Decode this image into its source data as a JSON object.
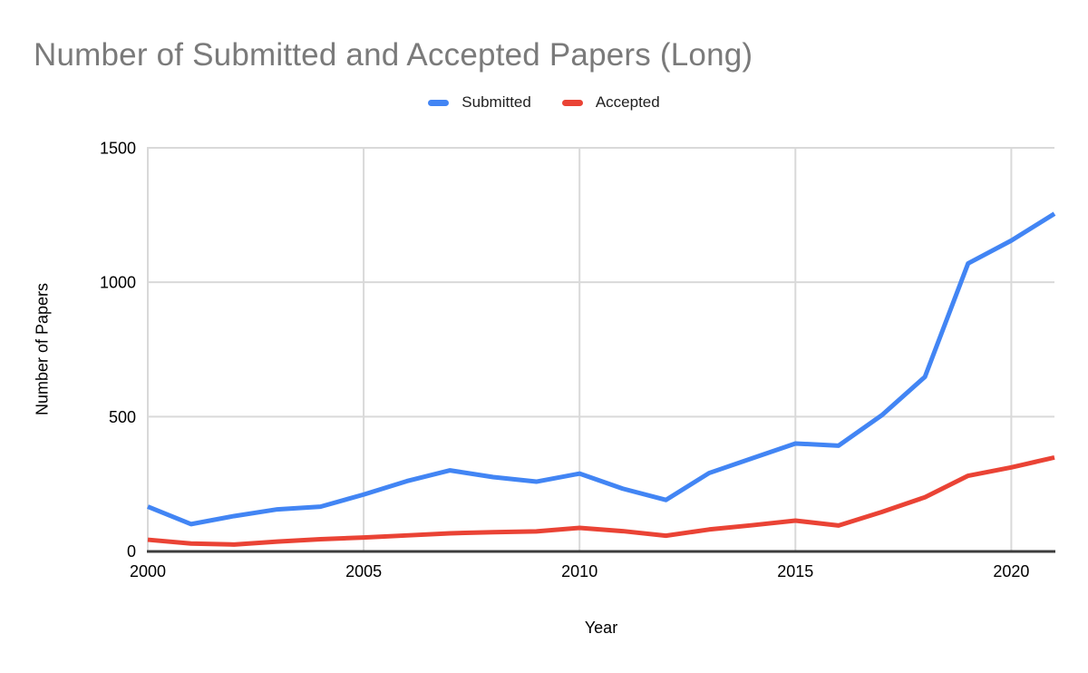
{
  "header": {
    "title": "Number of Submitted and Accepted Papers (Long)"
  },
  "legend": {
    "items": [
      {
        "label": "Submitted",
        "color": "#4285F4"
      },
      {
        "label": "Accepted",
        "color": "#EA4335"
      }
    ]
  },
  "colors": {
    "title_text": "#7a7a7a",
    "axis_line": "#3c3c3c",
    "gridline": "#d9d9d9",
    "tick_label": "#000000",
    "background": "#ffffff",
    "submitted_series": "#4285F4",
    "accepted_series": "#EA4335"
  },
  "chart_data": {
    "type": "line",
    "title": "Number of Submitted and Accepted Papers (Long)",
    "xlabel": "Year",
    "ylabel": "Number of Papers",
    "x": [
      2000,
      2001,
      2002,
      2003,
      2004,
      2005,
      2006,
      2007,
      2008,
      2009,
      2010,
      2011,
      2012,
      2013,
      2014,
      2015,
      2016,
      2017,
      2018,
      2019,
      2020,
      2021
    ],
    "series": [
      {
        "name": "Submitted",
        "color": "#4285F4",
        "values": [
          165,
          100,
          130,
          155,
          165,
          210,
          260,
          300,
          275,
          258,
          288,
          232,
          190,
          290,
          345,
          400,
          392,
          505,
          648,
          1070,
          1155,
          1255
        ]
      },
      {
        "name": "Accepted",
        "color": "#EA4335",
        "values": [
          42,
          28,
          24,
          35,
          44,
          50,
          58,
          66,
          70,
          73,
          86,
          74,
          57,
          80,
          96,
          113,
          95,
          145,
          200,
          280,
          311,
          348
        ]
      }
    ],
    "ylim": [
      0,
      1500
    ],
    "xlim": [
      2000,
      2021
    ],
    "y_ticks": [
      0,
      500,
      1000,
      1500
    ],
    "x_ticks": [
      2000,
      2005,
      2010,
      2015,
      2020
    ],
    "grid": true,
    "legend_position": "top"
  }
}
